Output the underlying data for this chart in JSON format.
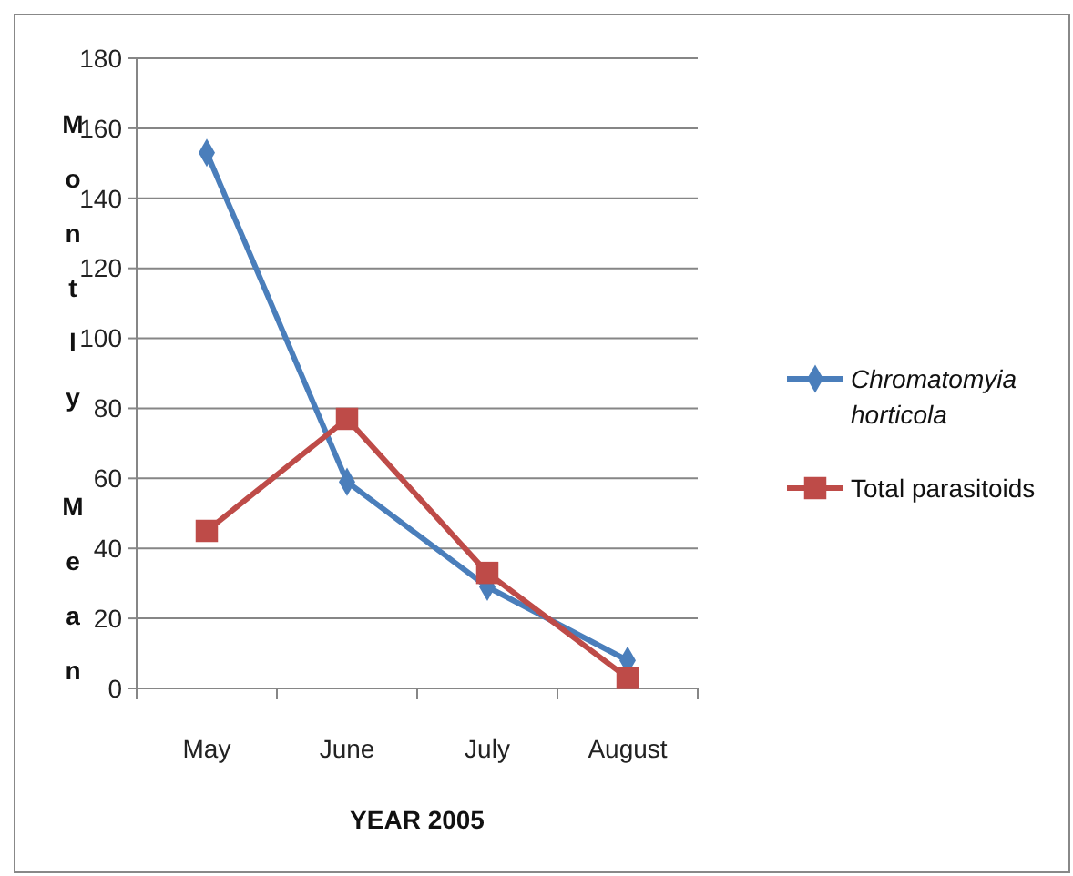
{
  "chart_data": {
    "type": "line",
    "ylabel": "Montly Mean",
    "xlabel": "YEAR 2005",
    "categories": [
      "May",
      "June",
      "July",
      "August"
    ],
    "series": [
      {
        "name": "Chromatomyia horticola",
        "color": "#4a7ebb",
        "marker": "diamond",
        "values": [
          153,
          59,
          29,
          8
        ]
      },
      {
        "name": "Total parasitoids",
        "color": "#be4b48",
        "marker": "square",
        "values": [
          45,
          77,
          33,
          3
        ]
      }
    ],
    "ylim": [
      0,
      180
    ],
    "yticks": [
      0,
      20,
      40,
      60,
      80,
      100,
      120,
      140,
      160,
      180
    ],
    "grid": "y",
    "legend": "right",
    "line_style": "solid"
  }
}
